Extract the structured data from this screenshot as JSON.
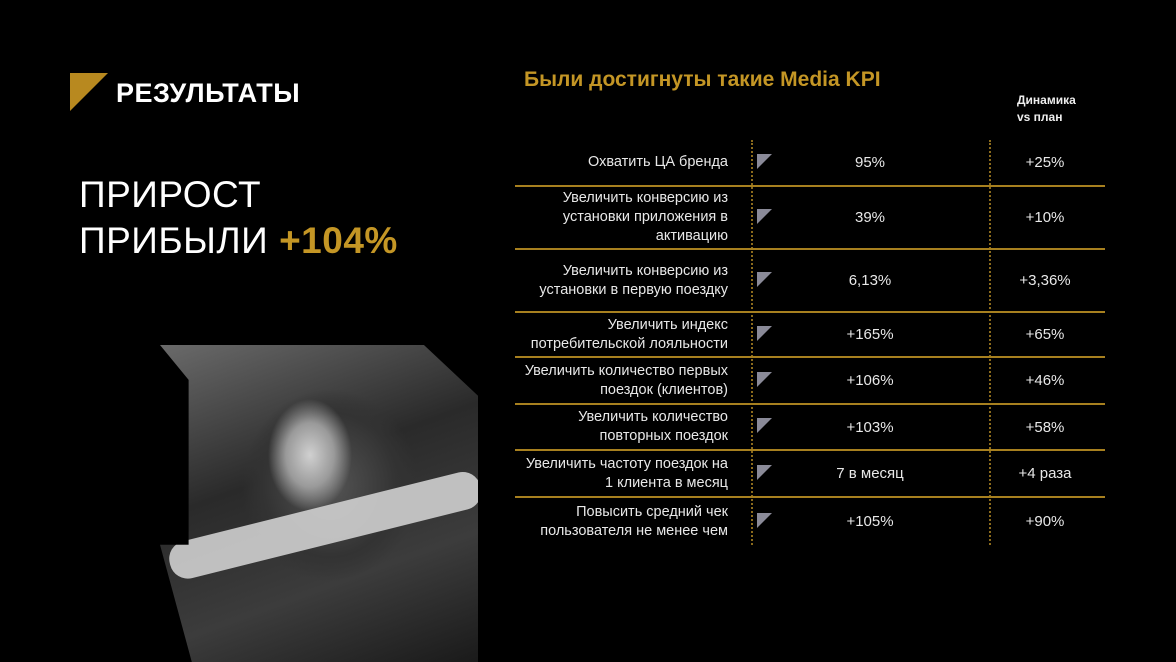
{
  "header": {
    "title": "РЕЗУЛЬТАТЫ"
  },
  "headline": {
    "line1": "ПРИРОСТ",
    "line2": "ПРИБЫЛИ",
    "accent": "+104%"
  },
  "kpi": {
    "title": "Были достигнуты такие Media KPI",
    "dynamics_header_line1": "Динамика",
    "dynamics_header_line2": "vs план",
    "rows": [
      {
        "label": "Охватить ЦА бренда",
        "value": "95%",
        "dynamics": "+25%"
      },
      {
        "label": "Увеличить конверсию из установки приложения в активацию",
        "value": "39%",
        "dynamics": "+10%"
      },
      {
        "label": "Увеличить конверсию из установки в первую поездку",
        "value": "6,13%",
        "dynamics": "+3,36%"
      },
      {
        "label": "Увеличить индекс потребительской лояльности",
        "value": "+165%",
        "dynamics": "+65%"
      },
      {
        "label": "Увеличить количество первых поездок (клиентов)",
        "value": "+106%",
        "dynamics": "+46%"
      },
      {
        "label": "Увеличить количество повторных поездок",
        "value": "+103%",
        "dynamics": "+58%"
      },
      {
        "label": "Увеличить частоту поездок на 1 клиента в месяц",
        "value": "7 в месяц",
        "dynamics": "+4 раза"
      },
      {
        "label": "Повысить средний чек пользователя не менее чем",
        "value": "+105%",
        "dynamics": "+90%"
      }
    ]
  },
  "colors": {
    "accent": "#c49625",
    "divider": "#a7801f",
    "marker": "#8a8a98"
  },
  "icons": {
    "logo": "gold-triangle-corner",
    "row_marker": "gray-triangle"
  }
}
